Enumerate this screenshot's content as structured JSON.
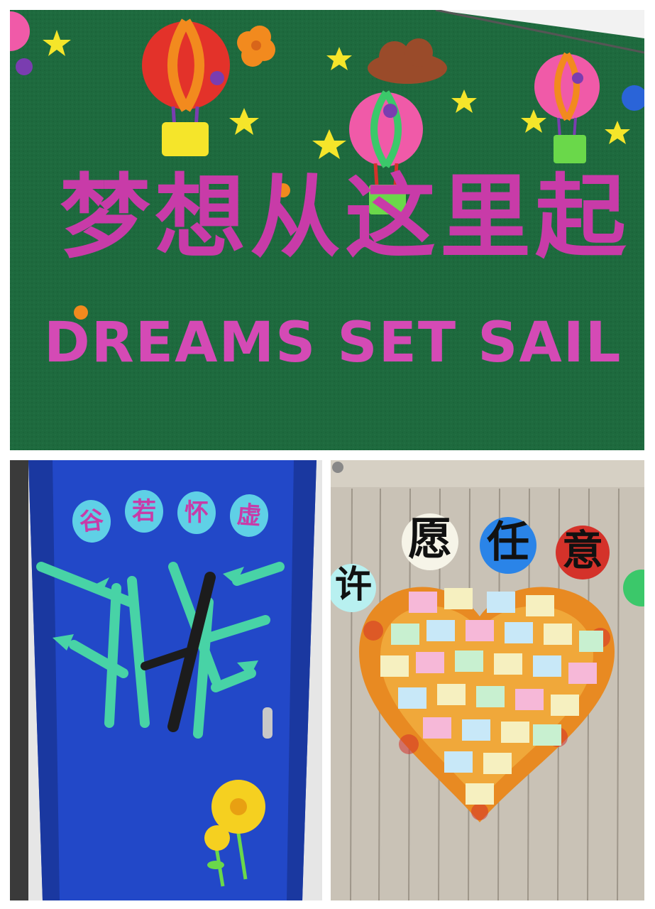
{
  "top_panel": {
    "heading_cn": "梦想从这里起",
    "heading_en": "DREAMS SET SAIL",
    "colors": {
      "board": "#1e6a3e",
      "lettering": "#c83ba8"
    }
  },
  "bottom_left_panel": {
    "badges": [
      "虚",
      "若",
      "怀",
      "谷"
    ],
    "colors": {
      "door": "#2248c8",
      "bamboo": "#48d3a6"
    }
  },
  "bottom_right_panel": {
    "wish_title": [
      "许",
      "愿",
      "任",
      "意"
    ],
    "colors": {
      "wall": "#c9c2b6",
      "leaves": "#e88a22"
    }
  }
}
